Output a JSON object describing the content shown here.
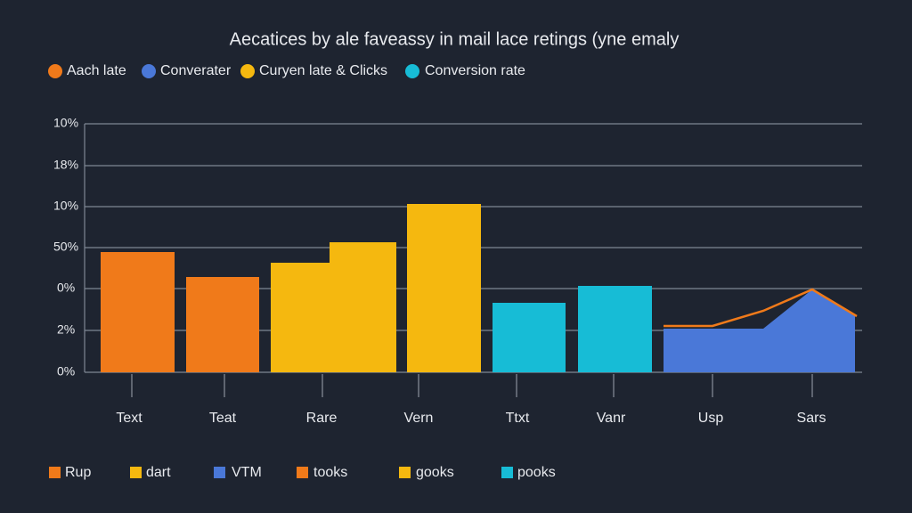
{
  "header": {
    "title": "Aecatices by ale faveassy in mail lace retings (yne emaly"
  },
  "legend_top": [
    "Aach late",
    "Converater",
    "Curyen late & Clicks",
    "Conversion rate"
  ],
  "y_axis_labels": [
    "10%",
    "18%",
    "10%",
    "50%",
    "0%",
    "2%",
    "0%"
  ],
  "categories": [
    "Text",
    "Teat",
    "Rare",
    "Vern",
    "Ttxt",
    "Vanr",
    "Usp",
    "Sars"
  ],
  "legend_bottom": [
    "Rup",
    "dart",
    "VTM",
    "tooks",
    "gooks",
    "pooks"
  ]
}
